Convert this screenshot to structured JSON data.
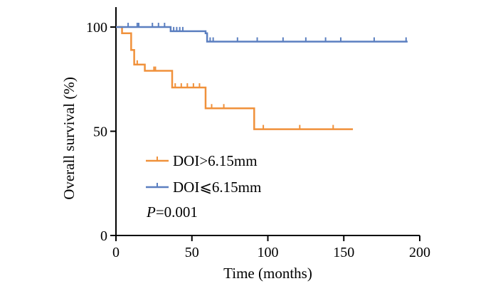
{
  "chart_data": {
    "type": "line",
    "title": "",
    "xlabel": "Time (months)",
    "ylabel": "Overall survival (%)",
    "xlim": [
      0,
      200
    ],
    "ylim": [
      0,
      100
    ],
    "xticks": [
      0,
      50,
      100,
      150,
      200
    ],
    "yticks": [
      0,
      50,
      100
    ],
    "xtick_labels": [
      "0",
      "50",
      "100",
      "150",
      "200"
    ],
    "ytick_labels": [
      "0",
      "50",
      "100"
    ],
    "grid": false,
    "legend_position": "bottom-left",
    "annotation": {
      "italic": "P",
      "rest": "=0.001"
    },
    "series": [
      {
        "name": "DOI>6.15mm",
        "color": "#F0913B",
        "steps": [
          [
            0,
            100
          ],
          [
            4,
            97
          ],
          [
            10,
            89
          ],
          [
            12,
            82
          ],
          [
            19,
            79
          ],
          [
            37,
            71
          ],
          [
            59,
            61
          ],
          [
            91,
            51
          ],
          [
            156,
            51
          ]
        ],
        "censors": [
          [
            14,
            82
          ],
          [
            25,
            79
          ],
          [
            26,
            79
          ],
          [
            39,
            71
          ],
          [
            43,
            71
          ],
          [
            47,
            71
          ],
          [
            51,
            71
          ],
          [
            55,
            71
          ],
          [
            63,
            61
          ],
          [
            71,
            61
          ],
          [
            97,
            51
          ],
          [
            121,
            51
          ],
          [
            143,
            51
          ]
        ]
      },
      {
        "name": "DOI⩽6.15mm",
        "color": "#5B7FC0",
        "steps": [
          [
            0,
            100
          ],
          [
            36,
            98
          ],
          [
            59,
            97
          ],
          [
            60,
            93
          ],
          [
            192,
            93
          ]
        ],
        "censors": [
          [
            8,
            100
          ],
          [
            14,
            100
          ],
          [
            15,
            100
          ],
          [
            24,
            100
          ],
          [
            28,
            100
          ],
          [
            32,
            100
          ],
          [
            38,
            98
          ],
          [
            40,
            98
          ],
          [
            42,
            98
          ],
          [
            44,
            98
          ],
          [
            62,
            93
          ],
          [
            64,
            93
          ],
          [
            80,
            93
          ],
          [
            93,
            93
          ],
          [
            110,
            93
          ],
          [
            125,
            93
          ],
          [
            138,
            93
          ],
          [
            148,
            93
          ],
          [
            170,
            93
          ],
          [
            191,
            93
          ]
        ]
      }
    ]
  }
}
